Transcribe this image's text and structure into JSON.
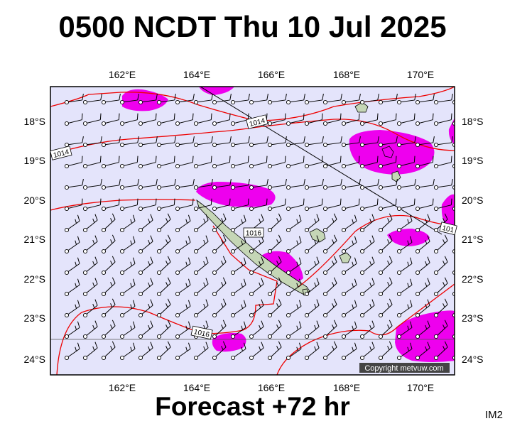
{
  "header": {
    "title": "0500 NCDT Thu 10 Jul 2025"
  },
  "footer": {
    "forecast": "Forecast +72 hr",
    "code": "IM2"
  },
  "map": {
    "region": "New Caledonia",
    "longitude_labels": [
      "162°E",
      "164°E",
      "166°E",
      "168°E",
      "170°E"
    ],
    "latitude_labels": [
      "18°S",
      "19°S",
      "20°S",
      "21°S",
      "22°S",
      "23°S",
      "24°S"
    ],
    "isobar_labels": [
      "1014",
      "1014",
      "1016",
      "1016",
      "101"
    ],
    "copyright": "Copyright metvuw.com",
    "colors": {
      "ocean": "#e4e4fb",
      "rain": "#ee00ee",
      "isobar": "#ee0000",
      "land": "#c5d6b6"
    }
  }
}
